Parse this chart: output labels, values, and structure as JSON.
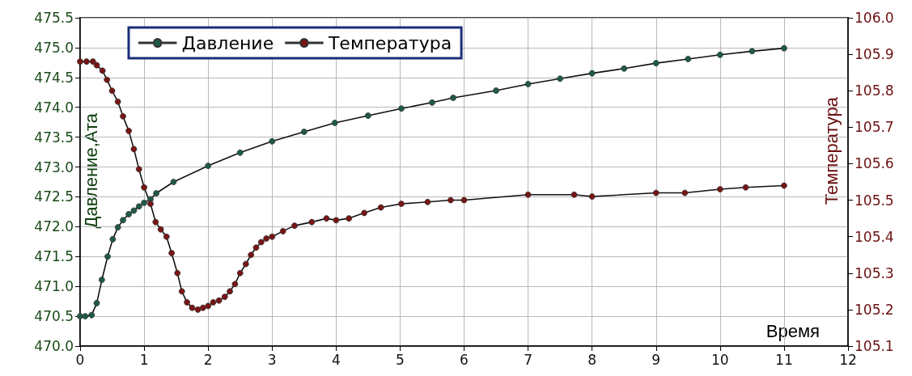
{
  "chart_data": {
    "type": "line",
    "xlabel": "Время",
    "ylabel": "Давление,Ата",
    "y2label": "Температура",
    "xlim": [
      0,
      12
    ],
    "xticks": [
      0,
      1,
      2,
      3,
      4,
      5,
      6,
      7,
      8,
      9,
      10,
      11,
      12
    ],
    "ylim": [
      470,
      475.5
    ],
    "yticks": [
      {
        "value": 470,
        "label": "470.0"
      },
      {
        "value": 470.5,
        "label": "470.5"
      },
      {
        "value": 471,
        "label": "471.0"
      },
      {
        "value": 471.5,
        "label": "471.5"
      },
      {
        "value": 472,
        "label": "472.0"
      },
      {
        "value": 472.5,
        "label": "472.5"
      },
      {
        "value": 473,
        "label": "473.0"
      },
      {
        "value": 473.5,
        "label": "473.5"
      },
      {
        "value": 474,
        "label": "474.0"
      },
      {
        "value": 474.5,
        "label": "474.5"
      },
      {
        "value": 475,
        "label": "475.0"
      },
      {
        "value": 475.5,
        "label": "475.5"
      }
    ],
    "y2lim": [
      105.1,
      106
    ],
    "y2ticks": [
      {
        "value": 105.1,
        "label": "105.1"
      },
      {
        "value": 105.2,
        "label": "105.2"
      },
      {
        "value": 105.3,
        "label": "105.3"
      },
      {
        "value": 105.4,
        "label": "105.4"
      },
      {
        "value": 105.5,
        "label": "105.5"
      },
      {
        "value": 105.6,
        "label": "105.6"
      },
      {
        "value": 105.7,
        "label": "105.7"
      },
      {
        "value": 105.8,
        "label": "105.8"
      },
      {
        "value": 105.9,
        "label": "105.9"
      },
      {
        "value": 106,
        "label": "106.0"
      }
    ],
    "grid": true,
    "legend": "top left",
    "marker": "circle",
    "line_style": "solid",
    "series": [
      {
        "name": "Давление",
        "color": "#1e5a4a",
        "x": [
          0,
          0.08,
          0.18,
          0.26,
          0.34,
          0.43,
          0.51,
          0.59,
          0.67,
          0.76,
          0.84,
          0.92,
          1.0,
          1.1,
          1.19,
          1.46,
          2.0,
          2.5,
          3.0,
          3.5,
          3.98,
          4.5,
          5.02,
          5.5,
          5.83,
          6.5,
          7.0,
          7.5,
          8.0,
          8.5,
          9.0,
          9.5,
          10.0,
          10.5,
          11.0
        ],
        "values": [
          470.5,
          470.5,
          470.52,
          470.72,
          471.11,
          471.5,
          471.79,
          471.99,
          472.11,
          472.21,
          472.27,
          472.34,
          472.4,
          472.46,
          472.56,
          472.75,
          473.02,
          473.24,
          473.43,
          473.59,
          473.74,
          473.86,
          473.98,
          474.08,
          474.16,
          474.28,
          474.39,
          474.48,
          474.57,
          474.65,
          474.74,
          474.81,
          474.88,
          474.94,
          474.99
        ]
      },
      {
        "name": "Температура",
        "color": "#7a1414",
        "axis": "y2",
        "x": [
          0,
          0.1,
          0.2,
          0.26,
          0.35,
          0.42,
          0.5,
          0.59,
          0.67,
          0.76,
          0.84,
          0.92,
          1.0,
          1.1,
          1.18,
          1.26,
          1.35,
          1.43,
          1.52,
          1.59,
          1.67,
          1.75,
          1.84,
          1.92,
          2.0,
          2.08,
          2.17,
          2.26,
          2.34,
          2.42,
          2.5,
          2.59,
          2.67,
          2.75,
          2.83,
          2.91,
          3.0,
          3.17,
          3.35,
          3.62,
          3.85,
          4.0,
          4.2,
          4.44,
          4.7,
          5.02,
          5.43,
          5.79,
          6.0,
          7.0,
          7.72,
          8.0,
          9.0,
          9.45,
          10.0,
          10.4,
          11.0
        ],
        "values": [
          105.88,
          105.88,
          105.88,
          105.87,
          105.855,
          105.83,
          105.8,
          105.77,
          105.73,
          105.69,
          105.64,
          105.585,
          105.535,
          105.49,
          105.44,
          105.42,
          105.4,
          105.355,
          105.3,
          105.25,
          105.22,
          105.205,
          105.2,
          105.205,
          105.21,
          105.22,
          105.225,
          105.235,
          105.25,
          105.27,
          105.3,
          105.325,
          105.35,
          105.37,
          105.385,
          105.395,
          105.4,
          105.415,
          105.43,
          105.44,
          105.45,
          105.445,
          105.45,
          105.465,
          105.48,
          105.49,
          105.495,
          105.5,
          105.5,
          105.515,
          105.515,
          105.51,
          105.52,
          105.52,
          105.53,
          105.535,
          105.54
        ]
      }
    ]
  }
}
